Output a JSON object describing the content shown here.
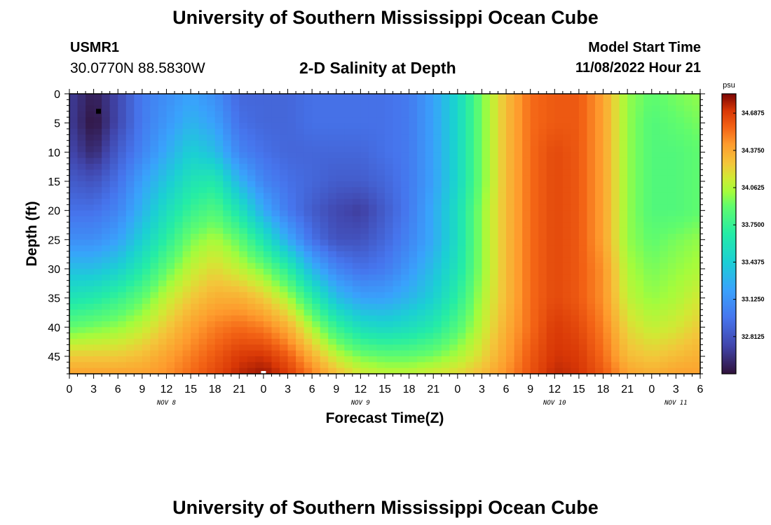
{
  "header": {
    "title": "University of Southern Mississippi Ocean Cube",
    "station_id": "USMR1",
    "station_coords": "30.0770N  88.5830W",
    "subtitle": "2-D Salinity at Depth",
    "model_start_label": "Model Start Time",
    "model_start_value": "11/08/2022 Hour 21"
  },
  "footer": {
    "title": "University of Southern Mississippi Ocean Cube"
  },
  "chart_data": {
    "type": "heatmap",
    "title": "2-D Salinity at Depth",
    "xlabel": "Forecast Time(Z)",
    "ylabel": "Depth (ft)",
    "x_tick_labels": [
      "0",
      "3",
      "6",
      "9",
      "12",
      "15",
      "18",
      "21",
      "0",
      "3",
      "6",
      "9",
      "12",
      "15",
      "18",
      "21",
      "0",
      "3",
      "6",
      "9",
      "12",
      "15",
      "18",
      "21",
      "0",
      "3",
      "6"
    ],
    "x_range_hours": [
      0,
      78
    ],
    "date_labels": [
      {
        "text": "NOV 8",
        "hour": 12
      },
      {
        "text": "NOV 9",
        "hour": 36
      },
      {
        "text": "NOV 10",
        "hour": 60
      },
      {
        "text": "NOV 11",
        "hour": 75
      }
    ],
    "y_ticks": [
      0,
      5,
      10,
      15,
      20,
      25,
      30,
      35,
      40,
      45
    ],
    "y_range": [
      0,
      48
    ],
    "y_inverted": true,
    "colorbar": {
      "unit": "psu",
      "labels": [
        "34.6875",
        "34.3750",
        "34.0625",
        "33.7500",
        "33.4375",
        "33.1250",
        "32.8125"
      ],
      "min": 32.5,
      "max": 34.85
    },
    "markers": [
      {
        "hour": 3.6,
        "depth": 3,
        "color": "#000000"
      },
      {
        "hour": 24,
        "depth": 48,
        "color": "#ffffff"
      }
    ],
    "salinity_field": {
      "hours": [
        0,
        3,
        6,
        9,
        12,
        15,
        18,
        21,
        24,
        27,
        30,
        33,
        36,
        39,
        42,
        45,
        48,
        51,
        54,
        57,
        60,
        63,
        66,
        69,
        72,
        75,
        78
      ],
      "depths": [
        0,
        5,
        10,
        15,
        20,
        25,
        30,
        35,
        40,
        45,
        48
      ],
      "values": [
        [
          32.7,
          32.55,
          32.75,
          33.0,
          33.1,
          33.2,
          33.1,
          32.9,
          32.9,
          32.9,
          32.95,
          32.95,
          32.95,
          32.95,
          33.0,
          33.2,
          33.5,
          33.95,
          34.3,
          34.55,
          34.6,
          34.6,
          34.4,
          34.0,
          33.9,
          33.95,
          34.0
        ],
        [
          32.7,
          32.5,
          32.75,
          33.0,
          33.15,
          33.3,
          33.2,
          32.95,
          32.9,
          32.9,
          32.95,
          32.95,
          32.95,
          32.95,
          33.0,
          33.2,
          33.5,
          33.95,
          34.3,
          34.55,
          34.6,
          34.6,
          34.4,
          34.0,
          33.85,
          33.9,
          33.95
        ],
        [
          32.75,
          32.6,
          32.85,
          33.05,
          33.25,
          33.45,
          33.35,
          33.05,
          32.95,
          32.9,
          32.9,
          32.9,
          32.9,
          32.95,
          33.0,
          33.2,
          33.5,
          33.95,
          34.3,
          34.55,
          34.65,
          34.6,
          34.4,
          34.0,
          33.85,
          33.85,
          33.9
        ],
        [
          32.85,
          32.8,
          32.95,
          33.2,
          33.4,
          33.6,
          33.65,
          33.3,
          33.05,
          32.95,
          32.9,
          32.85,
          32.85,
          32.9,
          33.0,
          33.2,
          33.5,
          33.95,
          34.3,
          34.55,
          34.65,
          34.6,
          34.4,
          34.0,
          33.85,
          33.85,
          33.9
        ],
        [
          32.95,
          32.95,
          33.05,
          33.3,
          33.55,
          33.75,
          33.85,
          33.6,
          33.25,
          33.0,
          32.85,
          32.75,
          32.7,
          32.85,
          33.0,
          33.25,
          33.55,
          34.0,
          34.3,
          34.55,
          34.65,
          34.6,
          34.4,
          34.0,
          33.85,
          33.85,
          33.9
        ],
        [
          33.1,
          33.1,
          33.2,
          33.45,
          33.7,
          33.95,
          34.05,
          33.9,
          33.6,
          33.25,
          32.95,
          32.8,
          32.8,
          32.9,
          33.05,
          33.25,
          33.55,
          34.0,
          34.3,
          34.55,
          34.65,
          34.6,
          34.4,
          34.0,
          33.9,
          33.95,
          34.0
        ],
        [
          33.35,
          33.35,
          33.45,
          33.65,
          33.9,
          34.1,
          34.2,
          34.1,
          33.95,
          33.7,
          33.3,
          33.05,
          32.95,
          33.0,
          33.15,
          33.35,
          33.6,
          34.0,
          34.3,
          34.55,
          34.65,
          34.6,
          34.45,
          34.05,
          33.95,
          34.0,
          34.05
        ],
        [
          33.6,
          33.65,
          33.75,
          33.9,
          34.1,
          34.25,
          34.35,
          34.35,
          34.25,
          34.05,
          33.7,
          33.35,
          33.2,
          33.2,
          33.3,
          33.45,
          33.7,
          34.05,
          34.3,
          34.55,
          34.65,
          34.6,
          34.45,
          34.1,
          34.0,
          34.05,
          34.15
        ],
        [
          33.9,
          33.95,
          34.0,
          34.1,
          34.25,
          34.4,
          34.5,
          34.55,
          34.5,
          34.35,
          34.05,
          33.75,
          33.55,
          33.5,
          33.55,
          33.65,
          33.85,
          34.1,
          34.35,
          34.55,
          34.7,
          34.65,
          34.5,
          34.2,
          34.1,
          34.15,
          34.25
        ],
        [
          34.25,
          34.25,
          34.25,
          34.3,
          34.4,
          34.5,
          34.6,
          34.7,
          34.72,
          34.6,
          34.35,
          34.1,
          33.95,
          33.9,
          33.9,
          33.95,
          34.05,
          34.2,
          34.4,
          34.6,
          34.72,
          34.7,
          34.55,
          34.3,
          34.25,
          34.3,
          34.35
        ],
        [
          34.4,
          34.4,
          34.4,
          34.4,
          34.45,
          34.55,
          34.65,
          34.75,
          34.8,
          34.7,
          34.5,
          34.3,
          34.15,
          34.1,
          34.1,
          34.15,
          34.2,
          34.3,
          34.45,
          34.62,
          34.75,
          34.72,
          34.6,
          34.4,
          34.35,
          34.4,
          34.4
        ]
      ]
    }
  }
}
